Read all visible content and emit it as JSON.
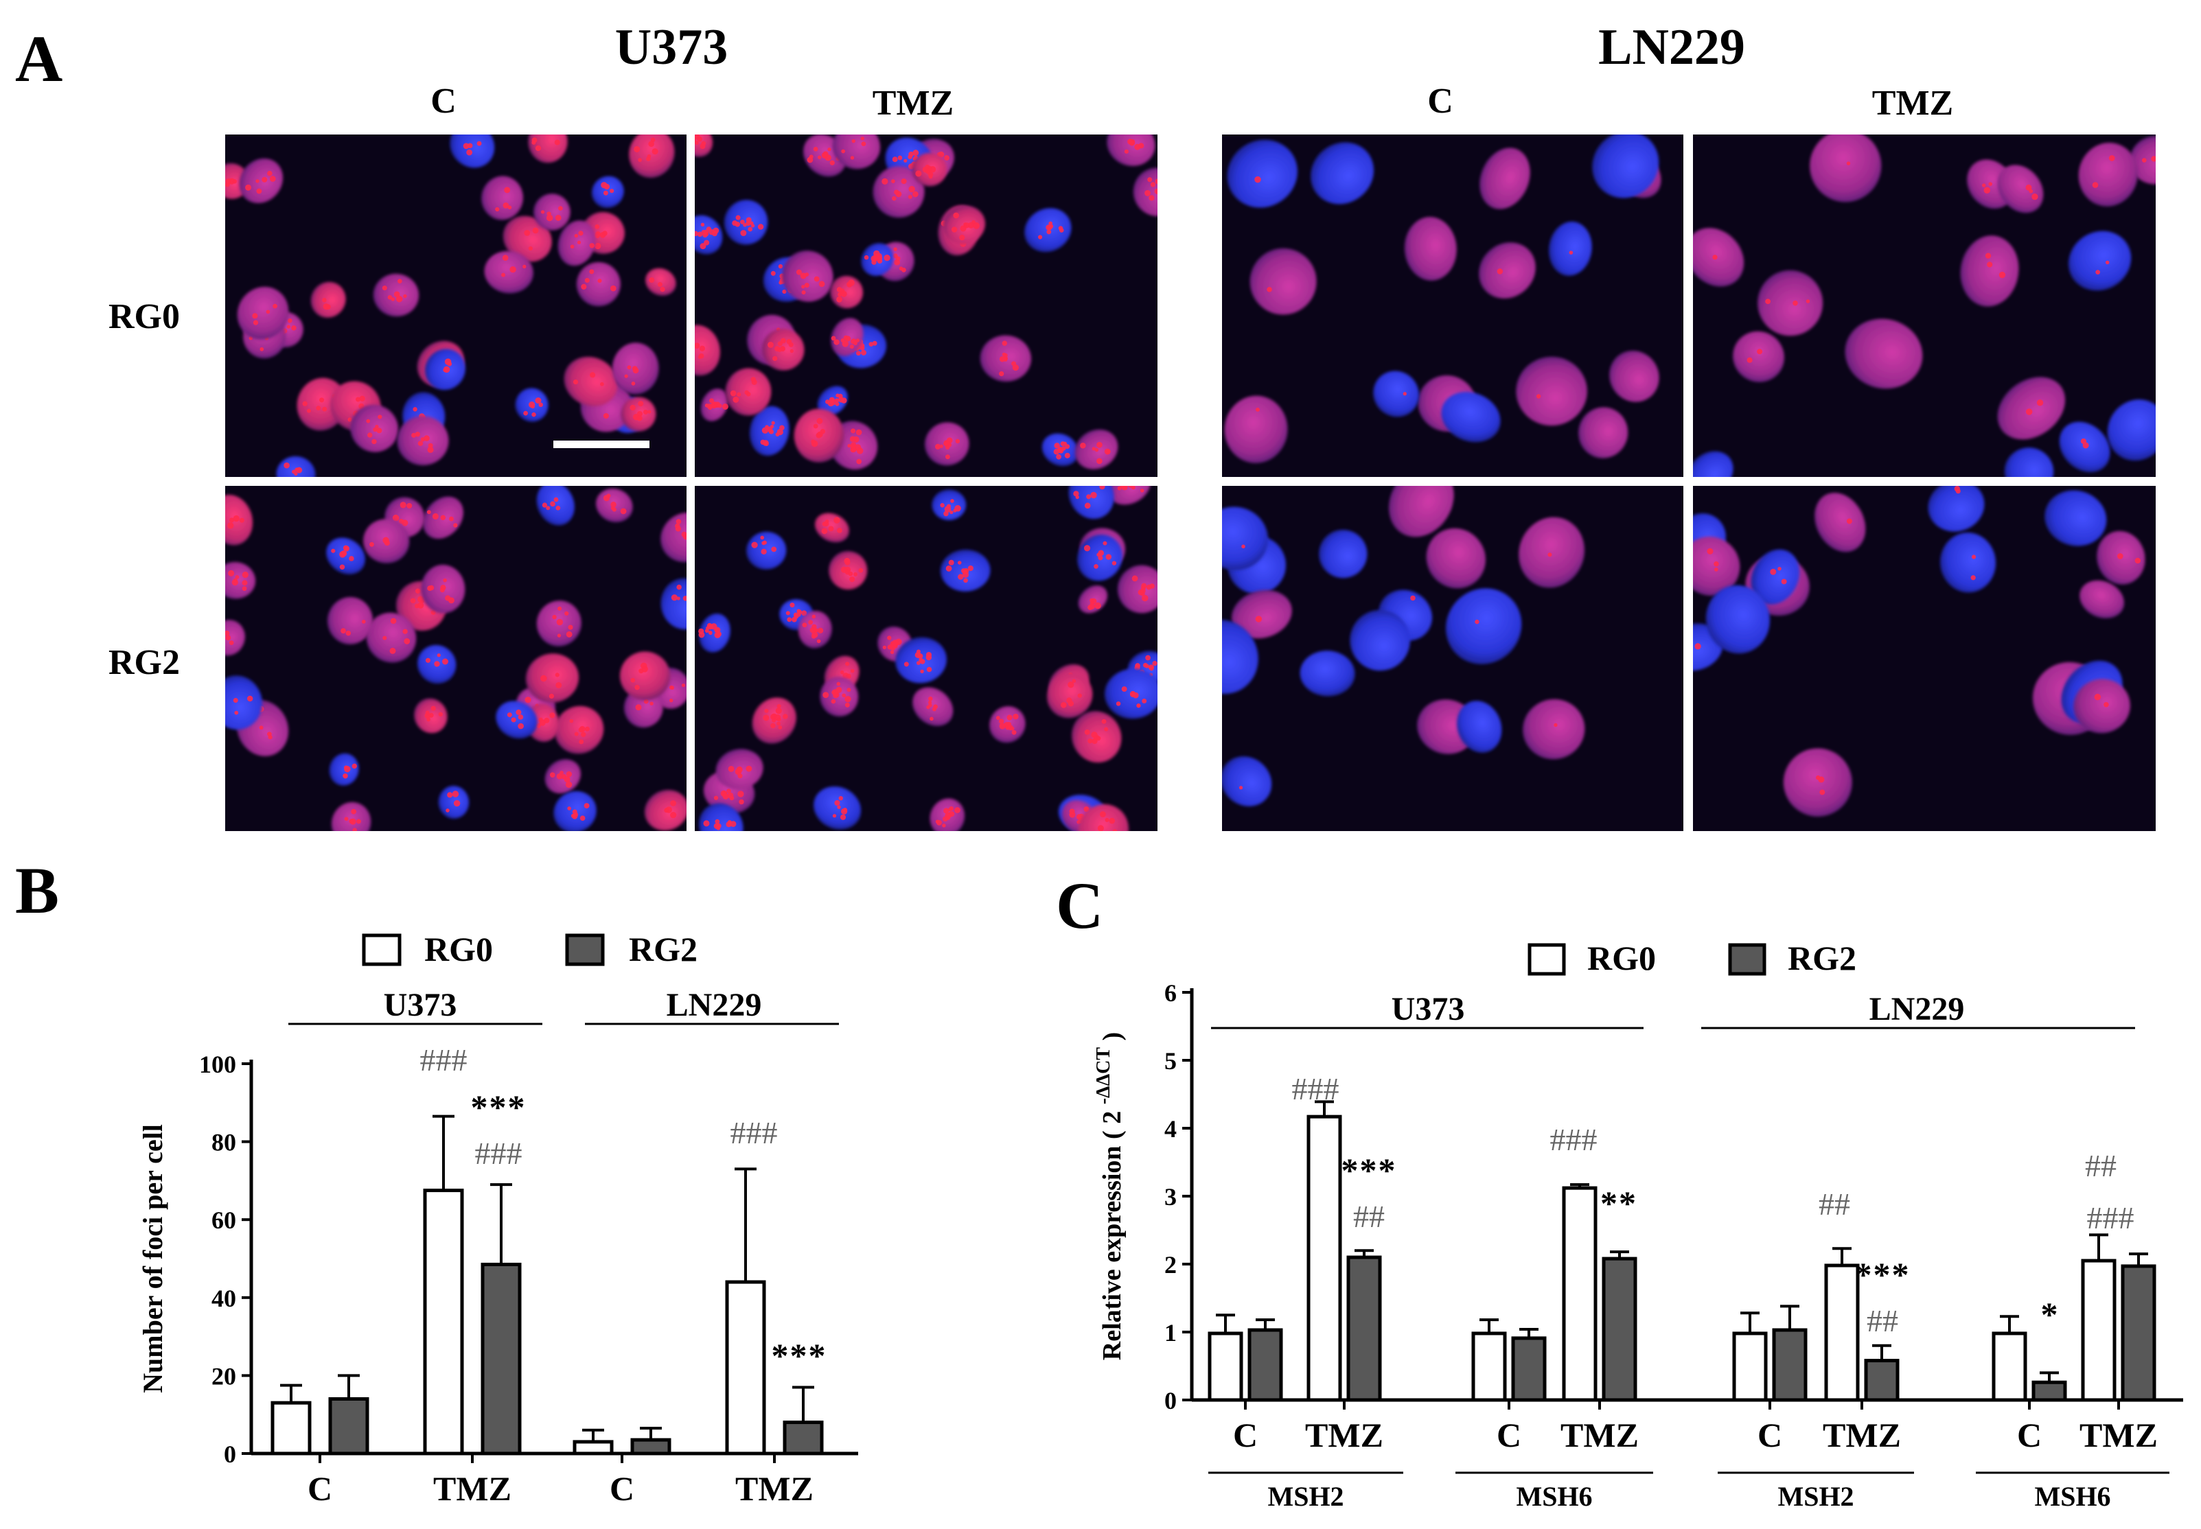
{
  "figure": {
    "panel_a": {
      "letter": "A",
      "cell_lines": [
        {
          "name": "U373",
          "columns": [
            "C",
            "TMZ"
          ]
        },
        {
          "name": "LN229",
          "columns": [
            "C",
            "TMZ"
          ]
        }
      ],
      "rows": [
        "RG0",
        "RG2"
      ]
    },
    "panel_b": {
      "letter": "B",
      "legend": [
        "RG0",
        "RG2"
      ],
      "groups": [
        "U373",
        "LN229"
      ]
    },
    "panel_c": {
      "letter": "C",
      "legend": [
        "RG0",
        "RG2"
      ],
      "groups": [
        "U373",
        "LN229"
      ]
    }
  },
  "colors": {
    "rg0_fill": "#ffffff",
    "rg2_fill": "#585858",
    "bar_stroke": "#000000",
    "nucleus_blue": "#2a35d8",
    "nucleus_magenta": "#b02a8e",
    "foci_red": "#ff2a4e",
    "micrograph_bg": "#0a0418",
    "hash_gray": "#666666"
  },
  "chart_data": [
    {
      "type": "bar",
      "panel": "B",
      "title": "",
      "ylabel": "Number of foci per cell",
      "ylim": [
        0,
        100
      ],
      "yticks": [
        0,
        20,
        40,
        60,
        80,
        100
      ],
      "grid": false,
      "legend_position": "top",
      "groups": [
        "U373",
        "LN229"
      ],
      "categories": [
        "C",
        "TMZ",
        "C",
        "TMZ"
      ],
      "series": [
        {
          "name": "RG0",
          "values": [
            13,
            67.5,
            3,
            44
          ],
          "errors": [
            4.5,
            19,
            3,
            29
          ]
        },
        {
          "name": "RG2",
          "values": [
            14,
            48.5,
            3.5,
            8
          ],
          "errors": [
            6,
            20.5,
            3,
            9
          ]
        }
      ],
      "annotations": [
        "###",
        "***",
        "###",
        "###",
        "***"
      ]
    },
    {
      "type": "bar",
      "panel": "C",
      "title": "",
      "ylabel": "Relative expression ( 2",
      "ylabel_superscript": "-ΔΔCT",
      "ylabel_close": ")",
      "ylim": [
        0,
        6
      ],
      "yticks": [
        0,
        1,
        2,
        3,
        4,
        5,
        6
      ],
      "grid": false,
      "legend_position": "top",
      "groups": [
        "U373",
        "LN229"
      ],
      "genes": [
        "MSH2",
        "MSH6",
        "MSH2",
        "MSH6"
      ],
      "categories": [
        "C",
        "TMZ",
        "C",
        "TMZ",
        "C",
        "TMZ",
        "C",
        "TMZ"
      ],
      "series": [
        {
          "name": "RG0",
          "values": [
            0.98,
            4.17,
            0.98,
            3.12,
            0.98,
            1.98,
            0.98,
            2.05
          ],
          "errors": [
            0.27,
            0.22,
            0.2,
            0.05,
            0.3,
            0.25,
            0.25,
            0.38
          ]
        },
        {
          "name": "RG2",
          "values": [
            1.03,
            2.1,
            0.91,
            2.08,
            1.03,
            0.58,
            0.26,
            1.97
          ],
          "errors": [
            0.15,
            0.1,
            0.13,
            0.1,
            0.35,
            0.22,
            0.14,
            0.18
          ]
        }
      ],
      "annotations": [
        "###",
        "***",
        "##",
        "###",
        "**",
        "##",
        "***",
        "##",
        "*",
        "##",
        "###"
      ]
    }
  ]
}
